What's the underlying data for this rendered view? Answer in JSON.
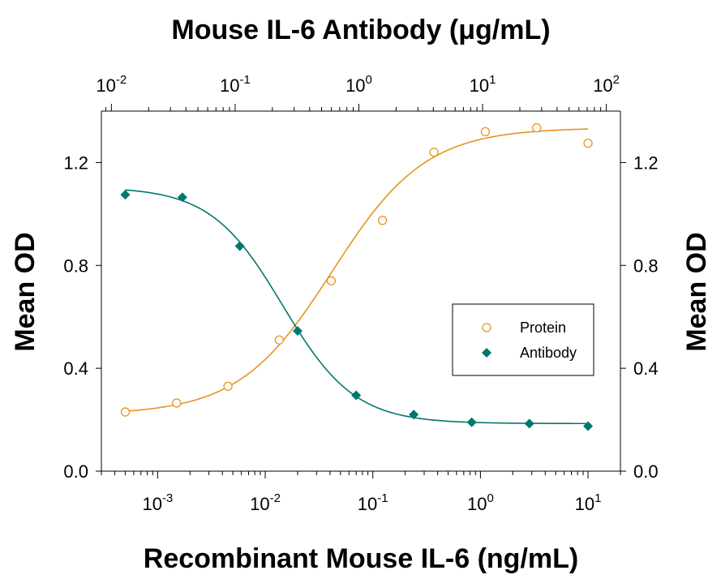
{
  "chart_data": {
    "type": "scatter",
    "title": "",
    "top_xlabel": "Mouse IL-6 Antibody (μg/mL)",
    "bottom_xlabel": "Recombinant Mouse IL-6 (ng/mL)",
    "left_ylabel": "Mean OD",
    "right_ylabel": "Mean OD",
    "x_scale": "log",
    "bottom_xlim": [
      0.0003,
      20
    ],
    "top_xlim": [
      0.0083,
      130
    ],
    "ylim": [
      0.0,
      1.4
    ],
    "yticks": [
      "0.0",
      "0.4",
      "0.8",
      "1.2"
    ],
    "y_tick_values": [
      0.0,
      0.4,
      0.8,
      1.2
    ],
    "bottom_xtick_exponents": [
      "-3",
      "-2",
      "-1",
      "0",
      "1"
    ],
    "top_xtick_exponents": [
      "-2",
      "-1",
      "0",
      "1",
      "2"
    ],
    "tick_base": "10",
    "legend_position": "center-right",
    "series": [
      {
        "name": "Protein",
        "marker": "open-circle",
        "color": "#E89320",
        "axis": "bottom",
        "x": [
          0.0005,
          0.0015,
          0.0045,
          0.0135,
          0.041,
          0.123,
          0.37,
          1.11,
          3.33,
          10.0
        ],
        "y": [
          0.23,
          0.265,
          0.33,
          0.51,
          0.74,
          0.975,
          1.24,
          1.32,
          1.335,
          1.275
        ],
        "fit": {
          "bottom": 0.22,
          "top": 1.335,
          "ec50": 0.042,
          "hill": 1.0
        }
      },
      {
        "name": "Antibody",
        "marker": "filled-diamond",
        "color": "#00786E",
        "axis": "bottom",
        "x": [
          0.0005,
          0.0017,
          0.0058,
          0.02,
          0.07,
          0.24,
          0.83,
          2.85,
          10.0
        ],
        "y": [
          1.075,
          1.065,
          0.875,
          0.545,
          0.295,
          0.22,
          0.19,
          0.185,
          0.175
        ],
        "fit": {
          "bottom": 0.185,
          "top": 1.105,
          "ec50": 0.0145,
          "hill": 1.3
        }
      }
    ]
  }
}
